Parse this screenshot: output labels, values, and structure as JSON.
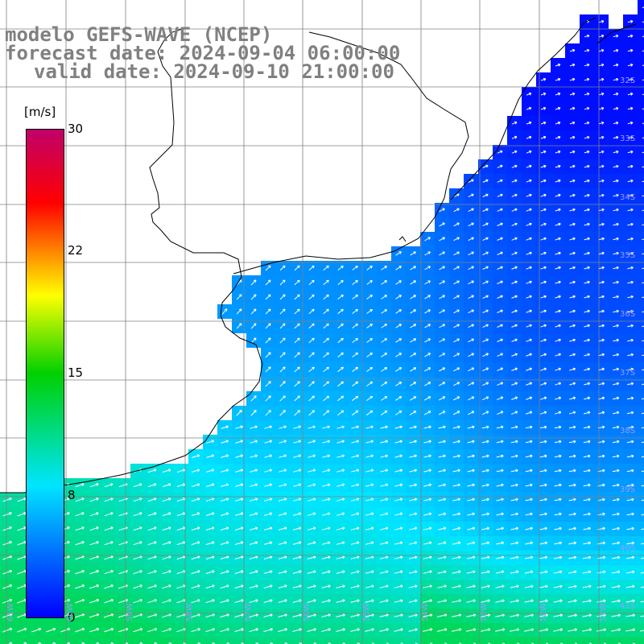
{
  "header": {
    "line1": "modelo GEFS-WAVE (NCEP)",
    "line2": "forecast date: 2024-09-04 06:00:00",
    "line3": "valid date: 2024-09-10 21:00:00"
  },
  "colorbar": {
    "unit": "[m/s]",
    "ticks": [
      "30",
      "22",
      "15",
      "8",
      "0"
    ],
    "tick_values": [
      30,
      22,
      15,
      8,
      0
    ],
    "min": 0,
    "max": 30,
    "colors": [
      "#0000ff",
      "#00e5ff",
      "#00d000",
      "#ffff00",
      "#ff0000",
      "#c0006a"
    ]
  },
  "map": {
    "lat_labels": [
      "32S",
      "33S",
      "34S",
      "35S",
      "36S",
      "37S",
      "38S",
      "39S",
      "40S",
      "41S"
    ],
    "lon_labels": [
      "61W",
      "60W",
      "59W",
      "58W",
      "57W",
      "56W",
      "55W",
      "54W",
      "53W",
      "52W",
      "51W"
    ],
    "land_color": "#ffffff",
    "grid_color": "#808080",
    "coast_color": "#000000",
    "arrow_color": "#ffffff",
    "label_color": "#9a9aff"
  }
}
